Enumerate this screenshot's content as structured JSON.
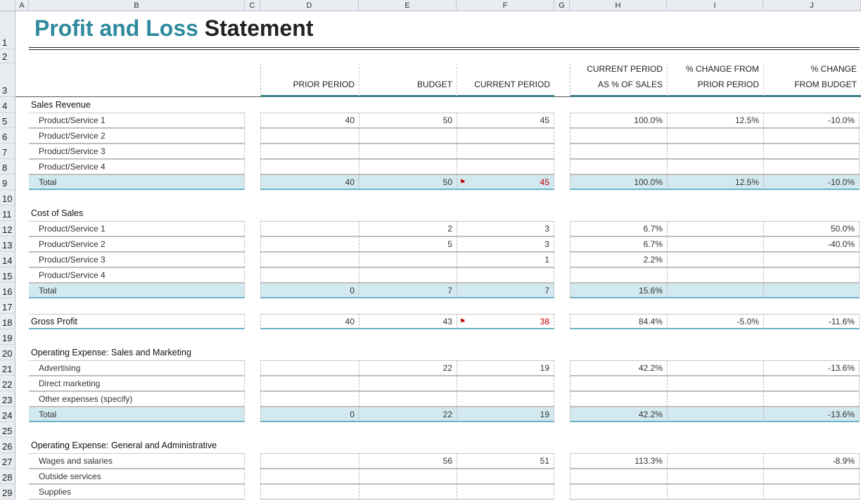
{
  "columns": [
    "A",
    "B",
    "C",
    "D",
    "E",
    "F",
    "G",
    "H",
    "I",
    "J"
  ],
  "title": {
    "part1": "Profit and Loss",
    "part2": "Statement"
  },
  "headers": {
    "D": "PRIOR PERIOD",
    "E": "BUDGET",
    "F": "CURRENT PERIOD",
    "H": "CURRENT PERIOD\nAS % OF SALES",
    "I": "% CHANGE FROM\nPRIOR PERIOD",
    "J": "% CHANGE\nFROM BUDGET"
  },
  "colors": {
    "title_accent": "#2e8a9c",
    "total_fill": "#d3e9f0",
    "total_border": "#6ab2c8",
    "header_rule": "#3f7f86",
    "alert": "#c00000"
  },
  "rows": [
    {
      "n": "4",
      "type": "section",
      "label": "Sales Revenue"
    },
    {
      "n": "5",
      "type": "item",
      "label": "Product/Service 1",
      "D": "40",
      "E": "50",
      "F": "45",
      "H": "100.0%",
      "I": "12.5%",
      "J": "-10.0%"
    },
    {
      "n": "6",
      "type": "item",
      "label": "Product/Service 2"
    },
    {
      "n": "7",
      "type": "item",
      "label": "Product/Service 3"
    },
    {
      "n": "8",
      "type": "item",
      "label": "Product/Service 4"
    },
    {
      "n": "9",
      "type": "total",
      "label": "Total",
      "D": "40",
      "E": "50",
      "F": "45",
      "H": "100.0%",
      "I": "12.5%",
      "J": "-10.0%",
      "flag": true
    },
    {
      "n": "10",
      "type": "blank"
    },
    {
      "n": "11",
      "type": "section",
      "label": "Cost of Sales"
    },
    {
      "n": "12",
      "type": "item",
      "label": "Product/Service 1",
      "E": "2",
      "F": "3",
      "H": "6.7%",
      "J": "50.0%"
    },
    {
      "n": "13",
      "type": "item",
      "label": "Product/Service 2",
      "E": "5",
      "F": "3",
      "H": "6.7%",
      "J": "-40.0%"
    },
    {
      "n": "14",
      "type": "item",
      "label": "Product/Service 3",
      "F": "1",
      "H": "2.2%"
    },
    {
      "n": "15",
      "type": "item",
      "label": "Product/Service 4"
    },
    {
      "n": "16",
      "type": "total",
      "label": "Total",
      "D": "0",
      "E": "7",
      "F": "7",
      "H": "15.6%"
    },
    {
      "n": "17",
      "type": "blank"
    },
    {
      "n": "18",
      "type": "gross",
      "label": "Gross Profit",
      "D": "40",
      "E": "43",
      "F": "38",
      "H": "84.4%",
      "I": "-5.0%",
      "J": "-11.6%",
      "flag": true
    },
    {
      "n": "19",
      "type": "blank"
    },
    {
      "n": "20",
      "type": "section",
      "label": "Operating Expense: Sales and Marketing"
    },
    {
      "n": "21",
      "type": "item",
      "label": "Advertising",
      "E": "22",
      "F": "19",
      "H": "42.2%",
      "J": "-13.6%"
    },
    {
      "n": "22",
      "type": "item",
      "label": "Direct marketing"
    },
    {
      "n": "23",
      "type": "item",
      "label": "Other expenses (specify)"
    },
    {
      "n": "24",
      "type": "total",
      "label": "Total",
      "D": "0",
      "E": "22",
      "F": "19",
      "H": "42.2%",
      "J": "-13.6%"
    },
    {
      "n": "25",
      "type": "blank"
    },
    {
      "n": "26",
      "type": "section",
      "label": "Operating Expense: General and Administrative"
    },
    {
      "n": "27",
      "type": "item",
      "label": "Wages and salaries",
      "E": "56",
      "F": "51",
      "H": "113.3%",
      "J": "-8.9%"
    },
    {
      "n": "28",
      "type": "item",
      "label": "Outside services"
    },
    {
      "n": "29",
      "type": "item",
      "label": "Supplies"
    }
  ]
}
